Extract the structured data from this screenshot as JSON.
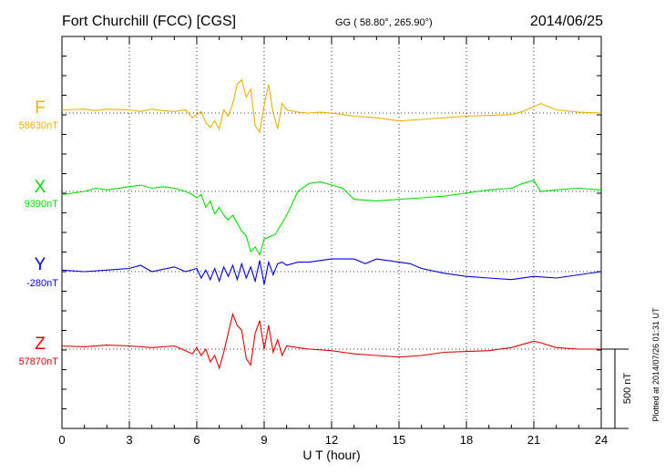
{
  "header": {
    "station": "Fort Churchill (FCC)  [CGS]",
    "coords": "GG ( 58.80°, 265.90°)",
    "date": "2014/06/25"
  },
  "footer_note": "Plotted at 2014/07/26 01:31  UT",
  "scale": {
    "label": "500 nT",
    "value_nT": 500
  },
  "chart_data": {
    "type": "line",
    "title": "Fort Churchill (FCC)  [CGS]",
    "xlabel": "U T (hour)",
    "ylabel": "",
    "xlim": [
      0,
      24
    ],
    "xticks": [
      0,
      3,
      6,
      9,
      12,
      15,
      18,
      21,
      24
    ],
    "xtick_labels": [
      "0",
      "3",
      "6",
      "9",
      "12",
      "15",
      "18",
      "21",
      "24"
    ],
    "y_unit": "nT (offset from baseline)",
    "grid": true,
    "series": [
      {
        "name": "F",
        "baseline_label": "58630nT",
        "color": "#f0b000",
        "x": [
          0,
          1,
          1.5,
          2,
          3,
          3.5,
          4,
          4.5,
          5,
          5.5,
          5.8,
          6,
          6.2,
          6.4,
          6.6,
          6.8,
          7,
          7.2,
          7.4,
          7.6,
          7.8,
          8,
          8.2,
          8.4,
          8.6,
          8.8,
          9,
          9.2,
          9.4,
          9.6,
          9.8,
          10,
          10.5,
          11,
          11.5,
          12,
          12.5,
          13,
          14,
          15,
          16,
          17,
          18,
          19,
          20,
          20.5,
          21,
          21.3,
          22,
          23,
          24
        ],
        "y": [
          20,
          25,
          15,
          25,
          20,
          10,
          25,
          15,
          10,
          20,
          -30,
          -10,
          10,
          -60,
          -90,
          -50,
          -100,
          20,
          -20,
          60,
          180,
          210,
          100,
          150,
          -80,
          -120,
          50,
          180,
          0,
          -100,
          60,
          20,
          5,
          0,
          5,
          0,
          -10,
          -20,
          -30,
          -50,
          -40,
          -30,
          -20,
          -15,
          -10,
          10,
          40,
          60,
          20,
          5,
          0
        ]
      },
      {
        "name": "X",
        "baseline_label": "9390nT",
        "color": "#00e000",
        "x": [
          0,
          1,
          1.5,
          2,
          3,
          3.5,
          4,
          4.5,
          5,
          5.5,
          5.8,
          6,
          6.2,
          6.4,
          6.6,
          6.8,
          7,
          7.2,
          7.4,
          7.6,
          7.8,
          8,
          8.2,
          8.4,
          8.6,
          8.8,
          9,
          9.5,
          10,
          10.5,
          11,
          11.5,
          12,
          12.5,
          13,
          14,
          15,
          16,
          17,
          18,
          19,
          20,
          20.5,
          21,
          21.3,
          22,
          23,
          24
        ],
        "y": [
          -20,
          0,
          20,
          10,
          30,
          40,
          20,
          30,
          20,
          0,
          -20,
          -40,
          -20,
          -100,
          -60,
          -140,
          -100,
          -150,
          -180,
          -150,
          -200,
          -250,
          -280,
          -380,
          -350,
          -400,
          -300,
          -270,
          -150,
          0,
          50,
          60,
          40,
          20,
          -50,
          -60,
          -50,
          -40,
          -30,
          -10,
          10,
          20,
          50,
          70,
          0,
          10,
          20,
          10
        ]
      },
      {
        "name": "Y",
        "baseline_label": "-280nT",
        "color": "#0000e0",
        "x": [
          0,
          1,
          2,
          3,
          3.5,
          4,
          5,
          5.5,
          6,
          6.2,
          6.4,
          6.6,
          6.8,
          7,
          7.2,
          7.4,
          7.6,
          7.8,
          8,
          8.2,
          8.4,
          8.6,
          8.8,
          9,
          9.2,
          9.4,
          9.6,
          9.8,
          10,
          10.5,
          11,
          11.5,
          12,
          12.5,
          13,
          13.5,
          14,
          15,
          15.5,
          16,
          17,
          18,
          19,
          20,
          21,
          22,
          23,
          24
        ],
        "y": [
          10,
          0,
          10,
          20,
          40,
          0,
          30,
          0,
          20,
          -40,
          10,
          -50,
          20,
          -60,
          30,
          -30,
          40,
          -50,
          50,
          -40,
          30,
          -60,
          70,
          -80,
          60,
          -20,
          50,
          60,
          40,
          60,
          60,
          70,
          80,
          80,
          80,
          50,
          80,
          60,
          50,
          20,
          -10,
          -30,
          -40,
          -50,
          -30,
          -40,
          -20,
          0
        ]
      },
      {
        "name": "Z",
        "baseline_label": "57870nT",
        "color": "#e00000",
        "x": [
          0,
          1,
          2,
          3,
          4,
          5,
          5.5,
          5.8,
          6,
          6.2,
          6.4,
          6.6,
          6.8,
          7,
          7.2,
          7.4,
          7.6,
          7.8,
          8,
          8.2,
          8.4,
          8.6,
          8.8,
          9,
          9.2,
          9.4,
          9.6,
          9.8,
          10,
          10.5,
          11,
          12,
          13,
          14,
          15,
          16,
          17,
          18,
          19,
          20,
          20.5,
          21,
          21.3,
          22,
          23,
          24
        ],
        "y": [
          20,
          15,
          25,
          20,
          10,
          20,
          -10,
          -30,
          10,
          -40,
          0,
          -80,
          -40,
          -120,
          -20,
          100,
          220,
          150,
          120,
          -60,
          -100,
          100,
          180,
          0,
          150,
          -20,
          60,
          -40,
          20,
          10,
          0,
          -10,
          -30,
          -40,
          -50,
          -40,
          -20,
          -15,
          -10,
          10,
          30,
          50,
          40,
          10,
          0,
          0
        ]
      }
    ]
  }
}
